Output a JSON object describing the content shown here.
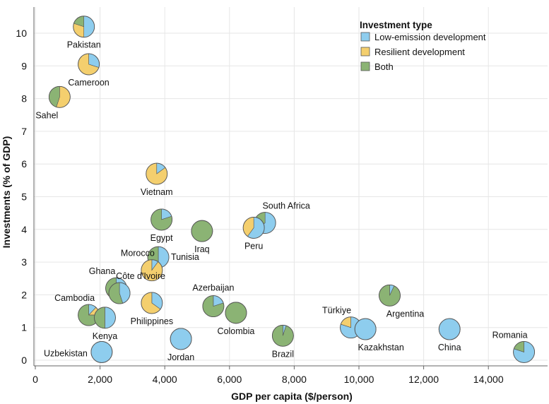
{
  "colors": {
    "low": "#8ecdee",
    "resilient": "#f4cf6e",
    "both": "#8bb374",
    "edge": "#555555"
  },
  "chart_data": {
    "type": "scatter",
    "xlabel": "GDP per capita ($/person)",
    "ylabel": "Investments (% of GDP)",
    "xlim": [
      0,
      15500
    ],
    "ylim": [
      -0.2,
      10.8
    ],
    "xticks": [
      0,
      2000,
      4000,
      6000,
      8000,
      10000,
      12000,
      14000
    ],
    "xtick_labels": [
      "0",
      "2,000",
      "4,000",
      "6,000",
      "8,000",
      "10,000",
      "12,000",
      "14,000"
    ],
    "yticks": [
      0,
      1,
      2,
      3,
      4,
      5,
      6,
      7,
      8,
      9,
      10
    ],
    "ytick_labels": [
      "0",
      "1",
      "2",
      "3",
      "4",
      "5",
      "6",
      "7",
      "8",
      "9",
      "10"
    ],
    "legend": {
      "title": "Investment type",
      "entries": [
        {
          "key": "low",
          "label": "Low-emission development"
        },
        {
          "key": "resilient",
          "label": "Resilient development"
        },
        {
          "key": "both",
          "label": "Both"
        }
      ]
    },
    "points": [
      {
        "label": "Pakistan",
        "x": 1500,
        "y": 10.2,
        "low": 0.5,
        "resilient": 0.3,
        "both": 0.2,
        "pos": "below"
      },
      {
        "label": "Cameroon",
        "x": 1650,
        "y": 9.05,
        "low": 0.3,
        "resilient": 0.7,
        "both": 0.0,
        "pos": "below"
      },
      {
        "label": "Sahel",
        "x": 750,
        "y": 8.05,
        "low": 0.0,
        "resilient": 0.55,
        "both": 0.45,
        "pos": "belowleft"
      },
      {
        "label": "Vietnam",
        "x": 3750,
        "y": 5.7,
        "low": 0.15,
        "resilient": 0.85,
        "both": 0.0,
        "pos": "below"
      },
      {
        "label": "Egypt",
        "x": 3900,
        "y": 4.3,
        "low": 0.2,
        "resilient": 0.0,
        "both": 0.8,
        "pos": "below"
      },
      {
        "label": "Iraq",
        "x": 5150,
        "y": 3.95,
        "low": 0.0,
        "resilient": 0.0,
        "both": 1.0,
        "pos": "below"
      },
      {
        "label": "South Africa",
        "x": 7100,
        "y": 4.2,
        "low": 0.65,
        "resilient": 0.0,
        "both": 0.35,
        "pos": "aboveright"
      },
      {
        "label": "Peru",
        "x": 6750,
        "y": 4.05,
        "low": 0.6,
        "resilient": 0.4,
        "both": 0.0,
        "pos": "below"
      },
      {
        "label": "Tunisia",
        "x": 3800,
        "y": 3.15,
        "low": 0.5,
        "resilient": 0.0,
        "both": 0.5,
        "pos": "right"
      },
      {
        "label": "Morocco",
        "x": 3600,
        "y": 2.75,
        "low": 0.1,
        "resilient": 0.9,
        "both": 0.0,
        "pos": "aboveleft"
      },
      {
        "label": "Ghana",
        "x": 2500,
        "y": 2.2,
        "low": 0.35,
        "resilient": 0.3,
        "both": 0.35,
        "pos": "aboveleft"
      },
      {
        "label": "Côte d'Ivoire",
        "x": 2600,
        "y": 2.05,
        "low": 0.45,
        "resilient": 0.0,
        "both": 0.55,
        "pos": "aboveright"
      },
      {
        "label": "Philippines",
        "x": 3600,
        "y": 1.75,
        "low": 0.35,
        "resilient": 0.65,
        "both": 0.0,
        "pos": "below"
      },
      {
        "label": "Azerbaijan",
        "x": 5500,
        "y": 1.65,
        "low": 0.2,
        "resilient": 0.0,
        "both": 0.8,
        "pos": "above"
      },
      {
        "label": "Colombia",
        "x": 6200,
        "y": 1.45,
        "low": 0.0,
        "resilient": 0.0,
        "both": 1.0,
        "pos": "below"
      },
      {
        "label": "Cambodia",
        "x": 1650,
        "y": 1.38,
        "low": 0.12,
        "resilient": 0.13,
        "both": 0.75,
        "pos": "aboveleft"
      },
      {
        "label": "Kenya",
        "x": 2150,
        "y": 1.3,
        "low": 0.5,
        "resilient": 0.0,
        "both": 0.5,
        "pos": "below"
      },
      {
        "label": "Uzbekistan",
        "x": 2050,
        "y": 0.25,
        "low": 1.0,
        "resilient": 0.0,
        "both": 0.0,
        "pos": "left"
      },
      {
        "label": "Jordan",
        "x": 4500,
        "y": 0.65,
        "low": 1.0,
        "resilient": 0.0,
        "both": 0.0,
        "pos": "below"
      },
      {
        "label": "Brazil",
        "x": 7650,
        "y": 0.75,
        "low": 0.05,
        "resilient": 0.0,
        "both": 0.95,
        "pos": "below"
      },
      {
        "label": "Türkiye",
        "x": 9750,
        "y": 1.0,
        "low": 0.8,
        "resilient": 0.2,
        "both": 0.0,
        "pos": "aboveleft"
      },
      {
        "label": "Kazakhstan",
        "x": 10200,
        "y": 0.95,
        "low": 1.0,
        "resilient": 0.0,
        "both": 0.0,
        "pos": "belowright"
      },
      {
        "label": "Argentina",
        "x": 10950,
        "y": 1.98,
        "low": 0.07,
        "resilient": 0.0,
        "both": 0.93,
        "pos": "belowright"
      },
      {
        "label": "China",
        "x": 12800,
        "y": 0.95,
        "low": 1.0,
        "resilient": 0.0,
        "both": 0.0,
        "pos": "below"
      },
      {
        "label": "Romania",
        "x": 15100,
        "y": 0.25,
        "low": 0.8,
        "resilient": 0.0,
        "both": 0.2,
        "pos": "aboveleft"
      }
    ]
  }
}
